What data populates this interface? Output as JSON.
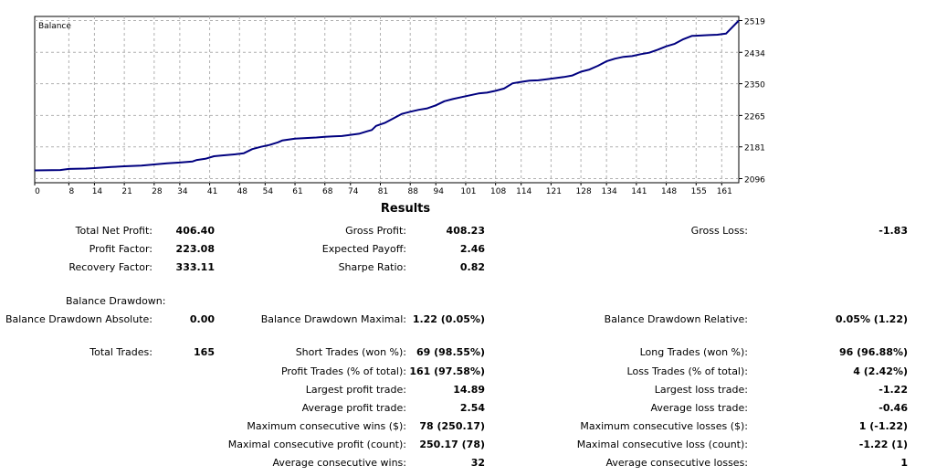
{
  "chart_data": {
    "type": "line",
    "title": "Balance",
    "xlabel": "",
    "ylabel": "",
    "x_ticks": [
      0,
      8,
      14,
      21,
      28,
      34,
      41,
      48,
      54,
      61,
      68,
      74,
      81,
      88,
      94,
      101,
      108,
      114,
      121,
      128,
      134,
      141,
      148,
      155,
      161
    ],
    "y_ticks": [
      2096,
      2181,
      2265,
      2350,
      2434,
      2519
    ],
    "xlim": [
      0,
      165
    ],
    "ylim": [
      2085,
      2530
    ],
    "grid": true,
    "series": [
      {
        "name": "",
        "color": "#00007f",
        "x": [
          0,
          6,
          8,
          12,
          14,
          18,
          21,
          25,
          28,
          31,
          34,
          37,
          38,
          40,
          42,
          44,
          47,
          49,
          51,
          53,
          55,
          57,
          58,
          61,
          63,
          66,
          68,
          70,
          72,
          74,
          76,
          78,
          79,
          80,
          82,
          84,
          86,
          88,
          90,
          92,
          94,
          96,
          98,
          100,
          102,
          104,
          106,
          108,
          110,
          112,
          114,
          116,
          118,
          120,
          122,
          124,
          126,
          128,
          130,
          132,
          134,
          136,
          138,
          140,
          142,
          144,
          146,
          148,
          150,
          152,
          154,
          156,
          158,
          160,
          162,
          165
        ],
        "y": [
          2118,
          2119,
          2122,
          2123,
          2124,
          2127,
          2129,
          2131,
          2134,
          2137,
          2139,
          2142,
          2146,
          2149,
          2156,
          2158,
          2161,
          2164,
          2175,
          2181,
          2186,
          2193,
          2198,
          2203,
          2204,
          2206,
          2208,
          2209,
          2210,
          2213,
          2216,
          2223,
          2226,
          2237,
          2245,
          2257,
          2269,
          2275,
          2280,
          2284,
          2292,
          2303,
          2309,
          2314,
          2319,
          2324,
          2326,
          2331,
          2337,
          2351,
          2355,
          2358,
          2359,
          2362,
          2365,
          2368,
          2372,
          2382,
          2388,
          2398,
          2410,
          2417,
          2422,
          2424,
          2429,
          2433,
          2441,
          2450,
          2457,
          2469,
          2478,
          2479,
          2480,
          2481,
          2484,
          2519
        ]
      }
    ]
  },
  "results": {
    "title": "Results",
    "total_net_profit": {
      "label": "Total Net Profit:",
      "value": "406.40"
    },
    "gross_profit": {
      "label": "Gross Profit:",
      "value": "408.23"
    },
    "gross_loss": {
      "label": "Gross Loss:",
      "value": "-1.83"
    },
    "profit_factor": {
      "label": "Profit Factor:",
      "value": "223.08"
    },
    "expected_payoff": {
      "label": "Expected Payoff:",
      "value": "2.46"
    },
    "recovery_factor": {
      "label": "Recovery Factor:",
      "value": "333.11"
    },
    "sharpe_ratio": {
      "label": "Sharpe Ratio:",
      "value": "0.82"
    },
    "balance_drawdown": {
      "label": "Balance Drawdown:"
    },
    "bd_absolute": {
      "label": "Balance Drawdown Absolute:",
      "value": "0.00"
    },
    "bd_maximal": {
      "label": "Balance Drawdown Maximal:",
      "value": "1.22 (0.05%)"
    },
    "bd_relative": {
      "label": "Balance Drawdown Relative:",
      "value": "0.05% (1.22)"
    },
    "total_trades": {
      "label": "Total Trades:",
      "value": "165"
    },
    "short_trades": {
      "label": "Short Trades (won %):",
      "value": "69 (98.55%)"
    },
    "long_trades": {
      "label": "Long Trades (won %):",
      "value": "96 (96.88%)"
    },
    "profit_trades": {
      "label": "Profit Trades (% of total):",
      "value": "161 (97.58%)"
    },
    "loss_trades": {
      "label": "Loss Trades (% of total):",
      "value": "4 (2.42%)"
    },
    "largest_profit": {
      "label": "Largest profit trade:",
      "value": "14.89"
    },
    "largest_loss": {
      "label": "Largest loss trade:",
      "value": "-1.22"
    },
    "average_profit": {
      "label": "Average profit trade:",
      "value": "2.54"
    },
    "average_loss": {
      "label": "Average loss trade:",
      "value": "-0.46"
    },
    "max_consec_wins": {
      "label": "Maximum consecutive wins ($):",
      "value": "78 (250.17)"
    },
    "max_consec_losses": {
      "label": "Maximum consecutive losses ($):",
      "value": "1 (-1.22)"
    },
    "maximal_consec_profit": {
      "label": "Maximal consecutive profit (count):",
      "value": "250.17 (78)"
    },
    "maximal_consec_loss": {
      "label": "Maximal consecutive loss (count):",
      "value": "-1.22 (1)"
    },
    "avg_consec_wins": {
      "label": "Average consecutive wins:",
      "value": "32"
    },
    "avg_consec_losses": {
      "label": "Average consecutive losses:",
      "value": "1"
    }
  }
}
